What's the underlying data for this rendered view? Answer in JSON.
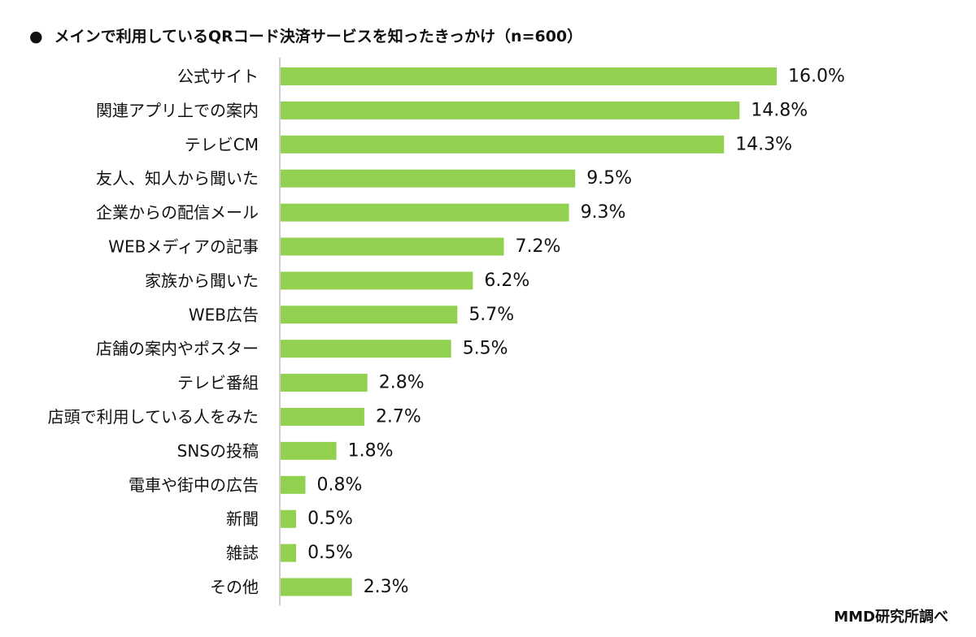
{
  "title": {
    "bullet": "●",
    "text": "メインで利用しているQRコード決済サービスを知ったきっかけ（n=600）"
  },
  "source": "MMD研究所調べ",
  "colors": {
    "bar": "#92D050",
    "axis": "#bfbfbf",
    "text": "#111111"
  },
  "chart_data": {
    "type": "bar",
    "orientation": "horizontal",
    "title": "メインで利用しているQRコード決済サービスを知ったきっかけ（n=600）",
    "categories": [
      "公式サイト",
      "関連アプリ上での案内",
      "テレビCM",
      "友人、知人から聞いた",
      "企業からの配信メール",
      "WEBメディアの記事",
      "家族から聞いた",
      "WEB広告",
      "店舗の案内やポスター",
      "テレビ番組",
      "店頭で利用している人をみた",
      "SNSの投稿",
      "電車や街中の広告",
      "新聞",
      "雑誌",
      "その他"
    ],
    "values": [
      16.0,
      14.8,
      14.3,
      9.5,
      9.3,
      7.2,
      6.2,
      5.7,
      5.5,
      2.8,
      2.7,
      1.8,
      0.8,
      0.5,
      0.5,
      2.3
    ],
    "value_labels": [
      "16.0%",
      "14.8%",
      "14.3%",
      "9.5%",
      "9.3%",
      "7.2%",
      "6.2%",
      "5.7%",
      "5.5%",
      "2.8%",
      "2.7%",
      "1.8%",
      "0.8%",
      "0.5%",
      "0.5%",
      "2.3%"
    ],
    "xlim": [
      0,
      16.0
    ],
    "unit": "%",
    "grid": false,
    "legend": "none"
  }
}
